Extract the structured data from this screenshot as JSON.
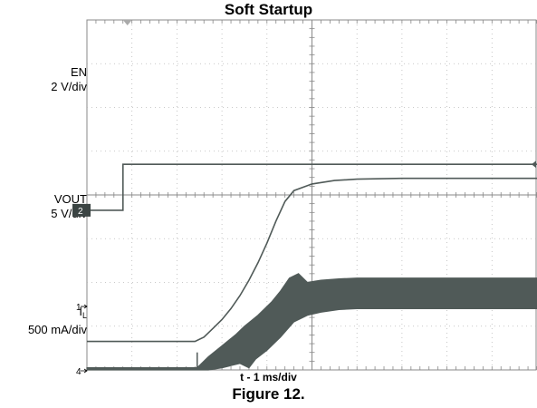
{
  "chart_data": {
    "type": "line",
    "title": "Soft Startup",
    "xlabel": "t - 1 ms/div",
    "ylabel": "",
    "caption": "Figure 12.",
    "x_unit": "div",
    "x_range": [
      0,
      10
    ],
    "divisions": {
      "x": 10,
      "y": 8
    },
    "grid": true,
    "channels": [
      {
        "label": "EN",
        "scale": "2 V/div",
        "marker": "2",
        "points": [
          [
            0,
            -0.35
          ],
          [
            0.8,
            -0.35
          ],
          [
            0.8,
            0.7
          ],
          [
            10,
            0.7
          ]
        ]
      },
      {
        "label": "VOUT",
        "scale": "5 V/div",
        "marker": "",
        "points": [
          [
            0,
            -3.35
          ],
          [
            2.4,
            -3.35
          ],
          [
            2.6,
            -3.25
          ],
          [
            2.8,
            -3.05
          ],
          [
            3,
            -2.85
          ],
          [
            3.2,
            -2.6
          ],
          [
            3.4,
            -2.3
          ],
          [
            3.6,
            -1.95
          ],
          [
            3.8,
            -1.55
          ],
          [
            4,
            -1.1
          ],
          [
            4.2,
            -0.6
          ],
          [
            4.4,
            -0.15
          ],
          [
            4.6,
            0.1
          ],
          [
            5,
            0.25
          ],
          [
            5.5,
            0.33
          ],
          [
            6,
            0.36
          ],
          [
            7,
            0.38
          ],
          [
            10,
            0.38
          ]
        ]
      },
      {
        "label": "IL",
        "scale": "500 mA/div",
        "marker": "4",
        "upper": [
          [
            0,
            -3.95
          ],
          [
            2.45,
            -3.95
          ],
          [
            2.7,
            -3.7
          ],
          [
            3,
            -3.45
          ],
          [
            3.3,
            -3.2
          ],
          [
            3.5,
            -3.0
          ],
          [
            3.8,
            -2.75
          ],
          [
            4.1,
            -2.45
          ],
          [
            4.3,
            -2.2
          ],
          [
            4.5,
            -1.9
          ],
          [
            4.7,
            -1.8
          ],
          [
            4.9,
            -2.0
          ],
          [
            5.2,
            -1.95
          ],
          [
            5.6,
            -1.92
          ],
          [
            6,
            -1.9
          ],
          [
            7,
            -1.9
          ],
          [
            10,
            -1.9
          ]
        ],
        "lower": [
          [
            0,
            -4.0
          ],
          [
            2.45,
            -4.0
          ],
          [
            2.7,
            -4.0
          ],
          [
            3,
            -3.95
          ],
          [
            3.2,
            -3.9
          ],
          [
            3.4,
            -3.85
          ],
          [
            3.6,
            -3.95
          ],
          [
            3.75,
            -3.75
          ],
          [
            4,
            -3.55
          ],
          [
            4.3,
            -3.25
          ],
          [
            4.6,
            -2.9
          ],
          [
            4.9,
            -2.75
          ],
          [
            5.2,
            -2.68
          ],
          [
            5.6,
            -2.62
          ],
          [
            6,
            -2.6
          ],
          [
            7,
            -2.6
          ],
          [
            10,
            -2.6
          ]
        ]
      }
    ],
    "ch1_marker": "1"
  },
  "colors": {
    "trace": "#505a58",
    "grid": "#b8b8b8",
    "frame": "#888888",
    "marker_bg": "#3b4443"
  }
}
